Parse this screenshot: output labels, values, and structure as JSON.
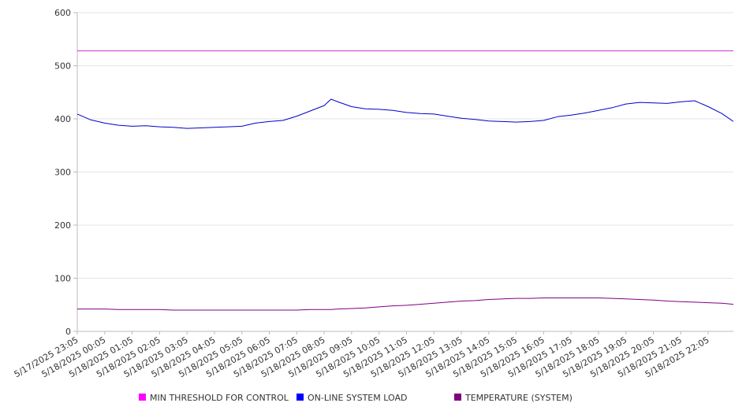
{
  "chart_data": {
    "type": "line",
    "title": "",
    "xlabel": "",
    "ylabel": "",
    "ylim": [
      0,
      600
    ],
    "yticks": [
      0,
      100,
      200,
      300,
      400,
      500,
      600
    ],
    "grid": "horizontal",
    "legend_position": "bottom",
    "x_start": "5/17/2025 23:05",
    "x_end": "5/18/2025 23:00",
    "x_tick_labels": [
      "5/17/2025 23:05",
      "5/18/2025 00:05",
      "5/18/2025 01:05",
      "5/18/2025 02:05",
      "5/18/2025 03:05",
      "5/18/2025 04:05",
      "5/18/2025 05:05",
      "5/18/2025 06:05",
      "5/18/2025 07:05",
      "5/18/2025 08:05",
      "5/18/2025 09:05",
      "5/18/2025 10:05",
      "5/18/2025 11:05",
      "5/18/2025 12:05",
      "5/18/2025 13:05",
      "5/18/2025 14:05",
      "5/18/2025 15:05",
      "5/18/2025 16:05",
      "5/18/2025 17:05",
      "5/18/2025 18:05",
      "5/18/2025 19:05",
      "5/18/2025 20:05",
      "5/18/2025 21:05",
      "5/18/2025 22:05"
    ],
    "x": [
      "5/17/2025 23:05",
      "5/17/2025 23:35",
      "5/18/2025 00:05",
      "5/18/2025 00:35",
      "5/18/2025 01:05",
      "5/18/2025 01:35",
      "5/18/2025 02:05",
      "5/18/2025 02:35",
      "5/18/2025 03:05",
      "5/18/2025 03:35",
      "5/18/2025 04:05",
      "5/18/2025 04:35",
      "5/18/2025 05:05",
      "5/18/2025 05:35",
      "5/18/2025 06:05",
      "5/18/2025 06:35",
      "5/18/2025 07:05",
      "5/18/2025 07:35",
      "5/18/2025 08:05",
      "5/18/2025 08:20",
      "5/18/2025 08:35",
      "5/18/2025 09:05",
      "5/18/2025 09:35",
      "5/18/2025 10:05",
      "5/18/2025 10:35",
      "5/18/2025 11:05",
      "5/18/2025 11:35",
      "5/18/2025 12:05",
      "5/18/2025 12:35",
      "5/18/2025 13:05",
      "5/18/2025 13:35",
      "5/18/2025 14:05",
      "5/18/2025 14:35",
      "5/18/2025 15:05",
      "5/18/2025 15:35",
      "5/18/2025 16:05",
      "5/18/2025 16:35",
      "5/18/2025 17:05",
      "5/18/2025 17:35",
      "5/18/2025 18:05",
      "5/18/2025 18:35",
      "5/18/2025 19:05",
      "5/18/2025 19:35",
      "5/18/2025 20:05",
      "5/18/2025 20:35",
      "5/18/2025 21:05",
      "5/18/2025 21:35",
      "5/18/2025 22:05",
      "5/18/2025 22:35",
      "5/18/2025 23:00"
    ],
    "series": [
      {
        "name": "MIN THRESHOLD FOR CONTROL",
        "color": "#cc33cc",
        "legend_color": "#ff00ff",
        "values": [
          528,
          528,
          528,
          528,
          528,
          528,
          528,
          528,
          528,
          528,
          528,
          528,
          528,
          528,
          528,
          528,
          528,
          528,
          528,
          528,
          528,
          528,
          528,
          528,
          528,
          528,
          528,
          528,
          528,
          528,
          528,
          528,
          528,
          528,
          528,
          528,
          528,
          528,
          528,
          528,
          528,
          528,
          528,
          528,
          528,
          528,
          528,
          528,
          528,
          528
        ]
      },
      {
        "name": "ON-LINE SYSTEM LOAD",
        "color": "#0000cc",
        "legend_color": "#0000ff",
        "values": [
          409,
          398,
          392,
          388,
          386,
          387,
          385,
          384,
          382,
          383,
          384,
          385,
          386,
          392,
          395,
          397,
          405,
          415,
          425,
          437,
          432,
          423,
          419,
          418,
          416,
          412,
          410,
          409,
          405,
          401,
          399,
          396,
          395,
          394,
          395,
          397,
          404,
          407,
          411,
          416,
          421,
          428,
          431,
          430,
          429,
          432,
          434,
          423,
          410,
          395
        ]
      },
      {
        "name": "TEMPERATURE (SYSTEM)",
        "color": "#800080",
        "legend_color": "#800080",
        "values": [
          42,
          42,
          42,
          41,
          41,
          41,
          41,
          40,
          40,
          40,
          40,
          40,
          40,
          40,
          40,
          40,
          40,
          41,
          41,
          41,
          42,
          43,
          44,
          46,
          48,
          49,
          51,
          53,
          55,
          57,
          58,
          60,
          61,
          62,
          62,
          63,
          63,
          63,
          63,
          63,
          62,
          61,
          60,
          59,
          57,
          56,
          55,
          54,
          53,
          51
        ]
      }
    ]
  }
}
